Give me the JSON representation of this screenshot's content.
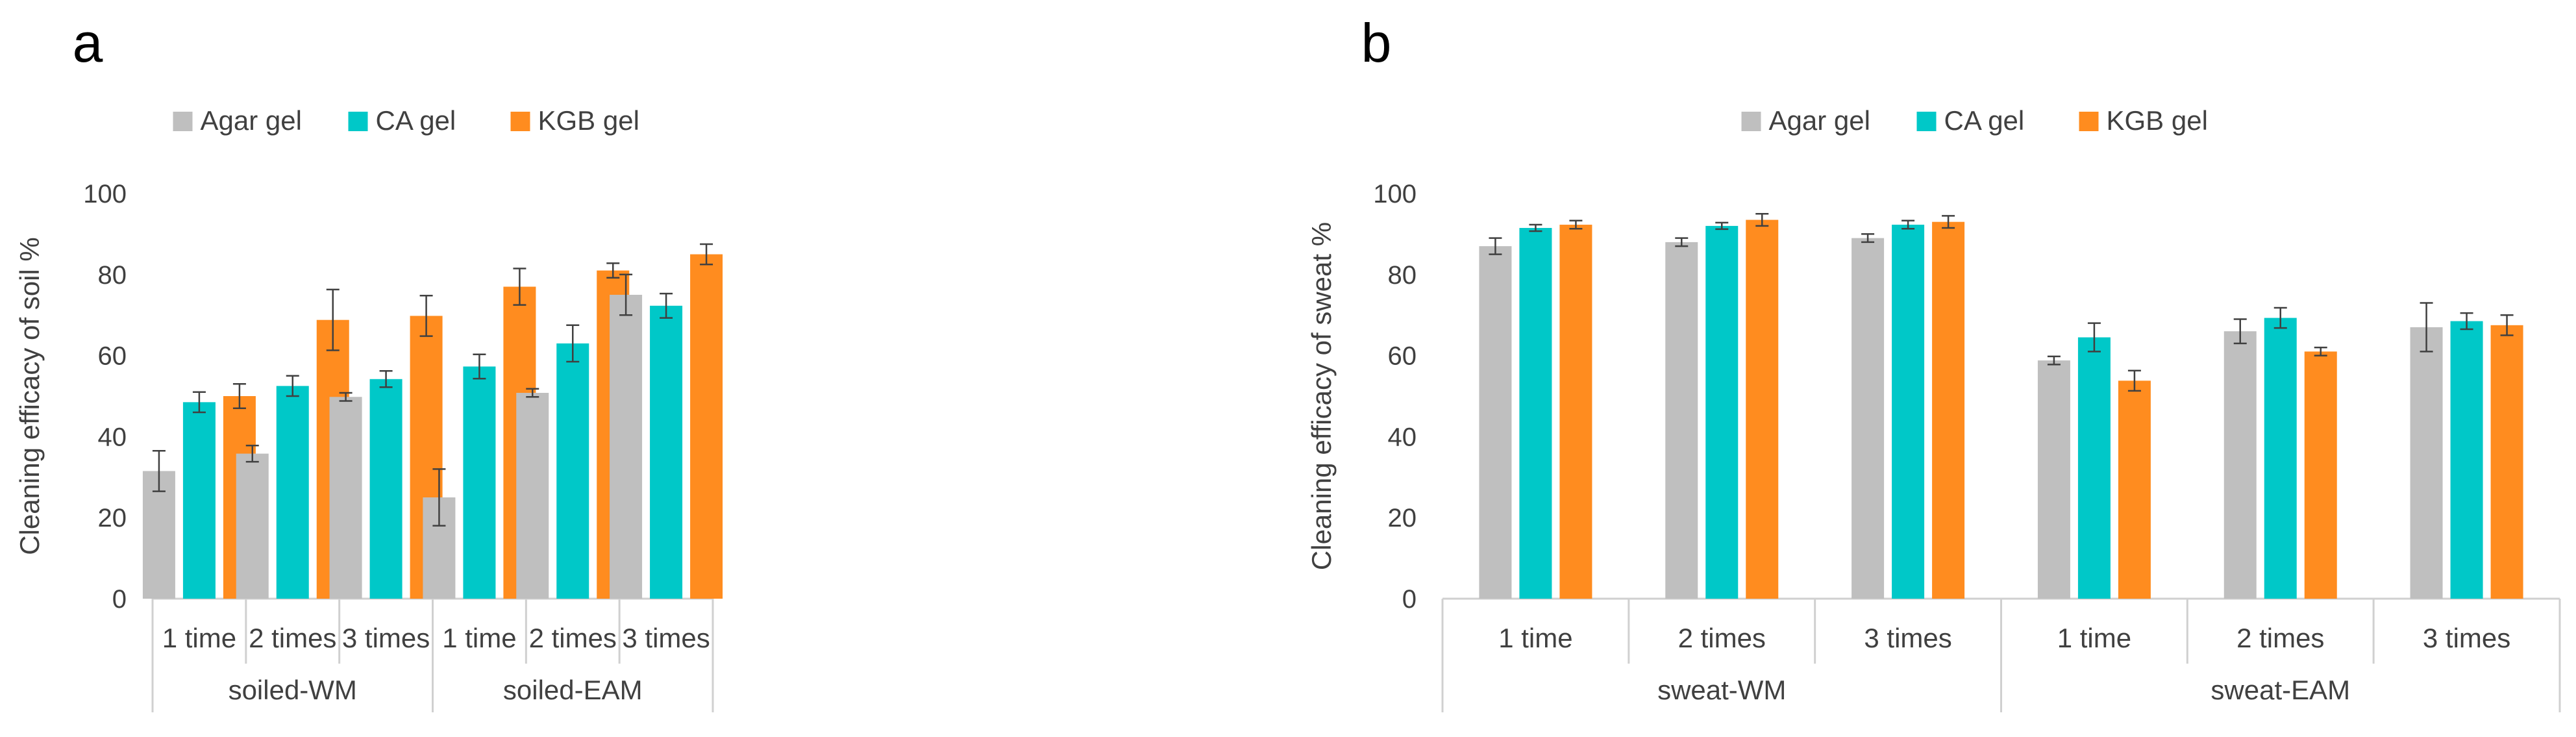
{
  "colors": {
    "Agar gel": "#bfbfbf",
    "CA gel": "#00c8c8",
    "KGB gel": "#ff8c1f",
    "axis": "#d0d0d0",
    "errorbar": "#404040"
  },
  "chart_data": [
    {
      "type": "bar",
      "panel_label": "a",
      "ylabel": "Cleaning efficacy of soil %",
      "ylim": [
        0,
        100
      ],
      "yticks": [
        0,
        20,
        40,
        60,
        80,
        100
      ],
      "grid": false,
      "legend": "top-center",
      "categories": [
        "1 time",
        "2 times",
        "3 times",
        "1 time",
        "2 times",
        "3 times"
      ],
      "groups": [
        {
          "label": "soiled-WM",
          "span": [
            0,
            2
          ]
        },
        {
          "label": "soiled-EAM",
          "span": [
            3,
            5
          ]
        }
      ],
      "series": [
        {
          "name": "Agar gel",
          "values": [
            31.5,
            35.8,
            49.8,
            25.0,
            50.8,
            75.0
          ],
          "errors": [
            5.0,
            2.0,
            1.0,
            7.0,
            1.0,
            5.0
          ]
        },
        {
          "name": "CA gel",
          "values": [
            48.5,
            52.5,
            54.2,
            57.3,
            63.0,
            72.3
          ],
          "errors": [
            2.5,
            2.5,
            2.0,
            3.0,
            4.5,
            3.0
          ]
        },
        {
          "name": "KGB gel",
          "values": [
            50.0,
            68.8,
            69.8,
            77.0,
            81.0,
            85.0
          ],
          "errors": [
            3.0,
            7.5,
            5.0,
            4.5,
            1.8,
            2.5
          ]
        }
      ]
    },
    {
      "type": "bar",
      "panel_label": "b",
      "ylabel": "Cleaning efficacy of sweat  %",
      "ylim": [
        0,
        100
      ],
      "yticks": [
        0,
        20,
        40,
        60,
        80,
        100
      ],
      "grid": false,
      "legend": "top-center",
      "categories": [
        "1 time",
        "2 times",
        "3 times",
        "1 time",
        "2 times",
        "3 times"
      ],
      "groups": [
        {
          "label": "sweat-WM",
          "span": [
            0,
            2
          ]
        },
        {
          "label": "sweat-EAM",
          "span": [
            3,
            5
          ]
        }
      ],
      "series": [
        {
          "name": "Agar gel",
          "values": [
            87.0,
            88.0,
            89.0,
            58.8,
            66.0,
            67.0
          ],
          "errors": [
            2.0,
            1.0,
            1.0,
            1.0,
            3.0,
            6.0
          ]
        },
        {
          "name": "CA gel",
          "values": [
            91.5,
            92.0,
            92.3,
            64.5,
            69.3,
            68.5
          ],
          "errors": [
            0.8,
            0.8,
            1.0,
            3.5,
            2.5,
            2.0
          ]
        },
        {
          "name": "KGB gel",
          "values": [
            92.3,
            93.5,
            93.0,
            53.8,
            61.0,
            67.5
          ],
          "errors": [
            1.0,
            1.5,
            1.5,
            2.5,
            1.0,
            2.5
          ]
        }
      ]
    }
  ]
}
